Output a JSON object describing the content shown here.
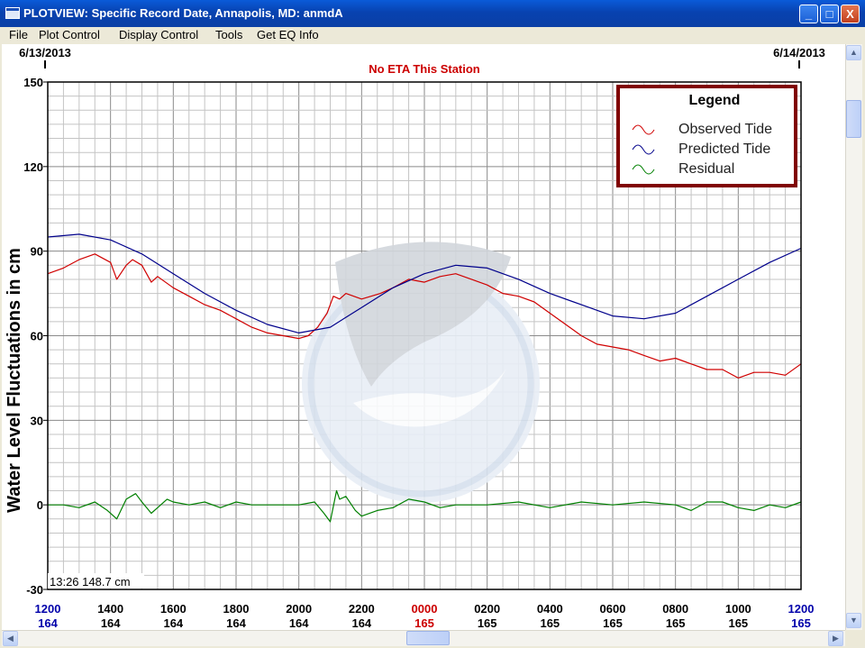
{
  "window": {
    "title": "PLOTVIEW: Specific Record Date, Annapolis, MD: anmdA"
  },
  "window_buttons": {
    "minimize": "_",
    "maximize": "□",
    "close": "X"
  },
  "menu": [
    {
      "label": "File"
    },
    {
      "label": "Plot Control"
    },
    {
      "label": "Display Control"
    },
    {
      "label": "Tools"
    },
    {
      "label": "Get EQ Info"
    }
  ],
  "header": {
    "date_left": "6/13/2013",
    "date_right": "6/14/2013",
    "eta": "No ETA This Station"
  },
  "status": {
    "readout": "13:26 148.7 cm"
  },
  "colors": {
    "observed": "#d00000",
    "predicted": "#00008b",
    "residual": "#008000",
    "eta": "#cc0000",
    "midnight_label": "#cc0000",
    "edge_label": "#0000aa",
    "legend_border": "#800000"
  },
  "chart_data": {
    "type": "line",
    "ylabel": "Water Level Fluctuations in cm",
    "ylim": [
      -30,
      150
    ],
    "yticks": [
      -30,
      0,
      30,
      60,
      90,
      120,
      150
    ],
    "xlim": [
      0,
      24
    ],
    "x_unit": "hours from 1200 on 6/13/2013",
    "grid": true,
    "legend": {
      "title": "Legend",
      "position": "top-right",
      "entries": [
        "Observed Tide",
        "Predicted Tide",
        "Residual"
      ]
    },
    "xticks": [
      {
        "label": "1200",
        "sub": "164",
        "style": "edge"
      },
      {
        "label": "1400",
        "sub": "164",
        "style": "normal"
      },
      {
        "label": "1600",
        "sub": "164",
        "style": "normal"
      },
      {
        "label": "1800",
        "sub": "164",
        "style": "normal"
      },
      {
        "label": "2000",
        "sub": "164",
        "style": "normal"
      },
      {
        "label": "2200",
        "sub": "164",
        "style": "normal"
      },
      {
        "label": "0000",
        "sub": "165",
        "style": "midnight"
      },
      {
        "label": "0200",
        "sub": "165",
        "style": "normal"
      },
      {
        "label": "0400",
        "sub": "165",
        "style": "normal"
      },
      {
        "label": "0600",
        "sub": "165",
        "style": "normal"
      },
      {
        "label": "0800",
        "sub": "165",
        "style": "normal"
      },
      {
        "label": "1000",
        "sub": "165",
        "style": "normal"
      },
      {
        "label": "1200",
        "sub": "165",
        "style": "edge"
      }
    ],
    "series": [
      {
        "name": "Observed Tide",
        "x": [
          0,
          0.5,
          1,
          1.5,
          2,
          2.2,
          2.5,
          2.7,
          3,
          3.3,
          3.5,
          4,
          4.5,
          5,
          5.5,
          6,
          6.5,
          7,
          7.5,
          8,
          8.3,
          8.6,
          8.9,
          9.1,
          9.3,
          9.5,
          10,
          10.3,
          10.6,
          11,
          11.5,
          12,
          12.5,
          13,
          13.5,
          14,
          14.5,
          15,
          15.5,
          16,
          16.5,
          17,
          17.5,
          18,
          18.5,
          19,
          19.5,
          20,
          20.5,
          21,
          21.5,
          22,
          22.5,
          23,
          23.5,
          24
        ],
        "values": [
          82,
          84,
          87,
          89,
          86,
          80,
          85,
          87,
          85,
          79,
          81,
          77,
          74,
          71,
          69,
          66,
          63,
          61,
          60,
          59,
          60,
          63,
          68,
          74,
          73,
          75,
          73,
          74,
          75,
          77,
          80,
          79,
          81,
          82,
          80,
          78,
          75,
          74,
          72,
          68,
          64,
          60,
          57,
          56,
          55,
          53,
          51,
          52,
          50,
          48,
          48,
          45,
          47,
          47,
          46,
          50
        ]
      },
      {
        "name": "Predicted Tide",
        "x": [
          0,
          1,
          2,
          3,
          4,
          5,
          6,
          7,
          8,
          9,
          10,
          11,
          12,
          13,
          14,
          15,
          16,
          17,
          18,
          19,
          20,
          21,
          22,
          23,
          24
        ],
        "values": [
          95,
          96,
          94,
          89,
          82,
          75,
          69,
          64,
          61,
          63,
          70,
          77,
          82,
          85,
          84,
          80,
          75,
          71,
          67,
          66,
          68,
          74,
          80,
          86,
          91
        ]
      },
      {
        "name": "Residual",
        "x": [
          0,
          0.5,
          1,
          1.5,
          1.9,
          2.2,
          2.5,
          2.8,
          3,
          3.3,
          3.5,
          3.8,
          4,
          4.5,
          5,
          5.5,
          6,
          6.5,
          7,
          7.5,
          8,
          8.5,
          8.8,
          9,
          9.2,
          9.3,
          9.5,
          9.8,
          10,
          10.5,
          11,
          11.5,
          12,
          12.5,
          13,
          14,
          15,
          16,
          17,
          18,
          19,
          20,
          20.5,
          21,
          21.5,
          22,
          22.5,
          23,
          23.5,
          24
        ],
        "values": [
          0,
          0,
          -1,
          1,
          -2,
          -5,
          2,
          4,
          1,
          -3,
          -1,
          2,
          1,
          0,
          1,
          -1,
          1,
          0,
          0,
          0,
          0,
          1,
          -3,
          -6,
          5,
          2,
          3,
          -2,
          -4,
          -2,
          -1,
          2,
          1,
          -1,
          0,
          0,
          1,
          -1,
          1,
          0,
          1,
          0,
          -2,
          1,
          1,
          -1,
          -2,
          0,
          -1,
          1
        ]
      }
    ]
  }
}
